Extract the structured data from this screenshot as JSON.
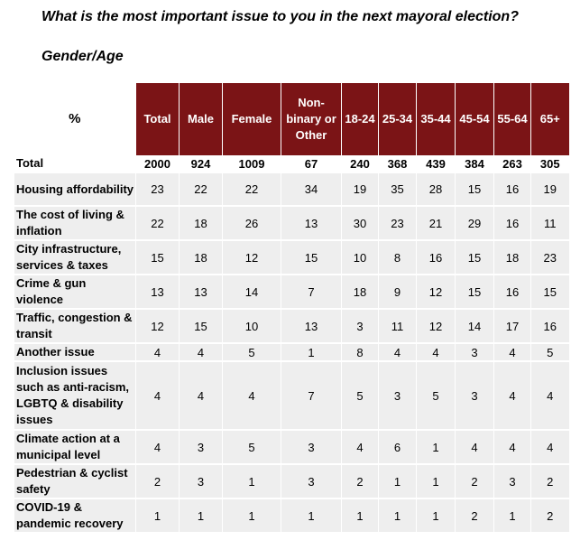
{
  "header": {
    "title": "What is the most important issue to you in the next mayoral election?",
    "subtitle": "Gender/Age"
  },
  "table": {
    "columns": [
      "%",
      "Total",
      "Male",
      "Female",
      "Non-binary or Other",
      "18-24",
      "25-34",
      "35-44",
      "45-54",
      "55-64",
      "65+"
    ],
    "rows": [
      [
        "Total",
        2000,
        924,
        1009,
        67,
        240,
        368,
        439,
        384,
        263,
        305
      ],
      [
        "Housing affordability",
        23,
        22,
        22,
        34,
        19,
        35,
        28,
        15,
        16,
        19
      ],
      [
        "The cost of living & inflation",
        22,
        18,
        26,
        13,
        30,
        23,
        21,
        29,
        16,
        11
      ],
      [
        "City infrastructure, services & taxes",
        15,
        18,
        12,
        15,
        10,
        8,
        16,
        15,
        18,
        23
      ],
      [
        "Crime & gun violence",
        13,
        13,
        14,
        7,
        18,
        9,
        12,
        15,
        16,
        15
      ],
      [
        "Traffic, congestion & transit",
        12,
        15,
        10,
        13,
        3,
        11,
        12,
        14,
        17,
        16
      ],
      [
        "Another issue",
        4,
        4,
        5,
        1,
        8,
        4,
        4,
        3,
        4,
        5
      ],
      [
        "Inclusion issues such as anti-racism, LGBTQ & disability issues",
        4,
        4,
        4,
        7,
        5,
        3,
        5,
        3,
        4,
        4
      ],
      [
        "Climate action at a municipal level",
        4,
        3,
        5,
        3,
        4,
        6,
        1,
        4,
        4,
        4
      ],
      [
        "Pedestrian & cyclist safety",
        2,
        3,
        1,
        3,
        2,
        1,
        1,
        2,
        3,
        2
      ],
      [
        "COVID-19 & pandemic recovery",
        1,
        1,
        1,
        1,
        1,
        1,
        1,
        2,
        1,
        2
      ]
    ]
  }
}
